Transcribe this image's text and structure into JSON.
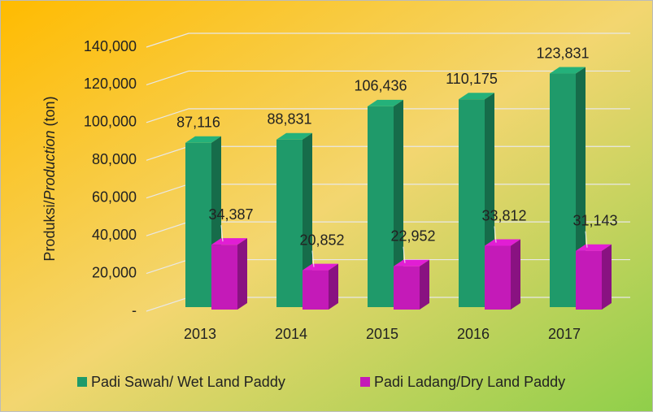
{
  "chart_data": {
    "type": "bar3d",
    "y_label": [
      "Produksi/",
      "Production",
      " (ton)"
    ],
    "categories": [
      "2013",
      "2014",
      "2015",
      "2016",
      "2017"
    ],
    "series": [
      {
        "name": "Padi Sawah/ Wet Land Paddy",
        "color": "#1f9a6a",
        "values": [
          87116,
          88831,
          106436,
          110175,
          123831
        ],
        "value_labels": [
          "87,116",
          "88,831",
          "106,436",
          "110,175",
          "123,831"
        ]
      },
      {
        "name": "Padi Ladang/Dry Land Paddy",
        "color": "#c41ab8",
        "values": [
          34387,
          20852,
          22952,
          33812,
          31143
        ],
        "value_labels": [
          "34,387",
          "20,852",
          "22,952",
          "33,812",
          "31,143"
        ]
      }
    ],
    "ylim": [
      0,
      140000
    ],
    "yticks": [
      {
        "value": 0,
        "label": "-"
      },
      {
        "value": 20000,
        "label": "20,000"
      },
      {
        "value": 40000,
        "label": "40,000"
      },
      {
        "value": 60000,
        "label": "60,000"
      },
      {
        "value": 80000,
        "label": "80,000"
      },
      {
        "value": 100000,
        "label": "100,000"
      },
      {
        "value": 120000,
        "label": "120,000"
      },
      {
        "value": 140000,
        "label": "140,000"
      }
    ],
    "grid": true,
    "legend": "bottom"
  }
}
